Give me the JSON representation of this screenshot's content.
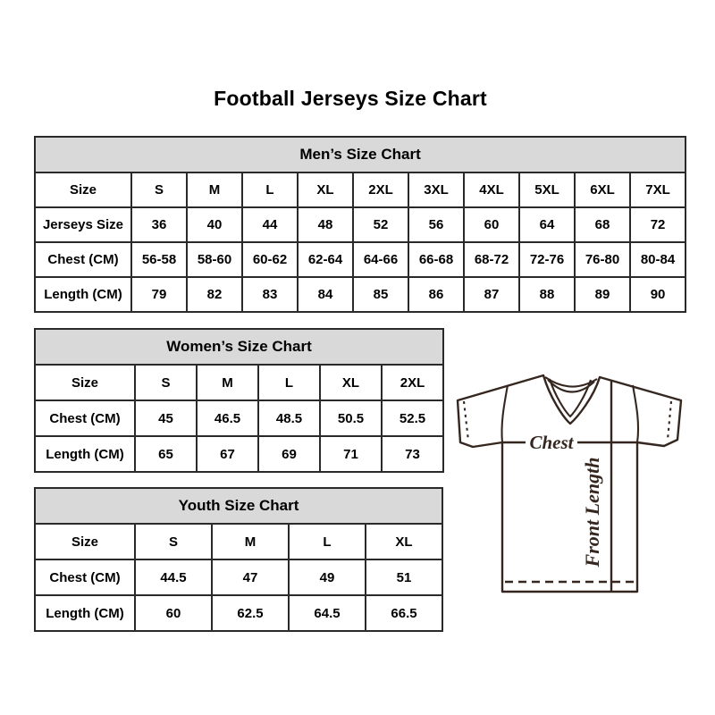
{
  "title": "Football Jerseys Size Chart",
  "tables": {
    "men": {
      "title": "Men’s Size Chart",
      "rows": [
        {
          "label": "Size",
          "values": [
            "S",
            "M",
            "L",
            "XL",
            "2XL",
            "3XL",
            "4XL",
            "5XL",
            "6XL",
            "7XL"
          ]
        },
        {
          "label": "Jerseys Size",
          "values": [
            "36",
            "40",
            "44",
            "48",
            "52",
            "56",
            "60",
            "64",
            "68",
            "72"
          ]
        },
        {
          "label": "Chest (CM)",
          "values": [
            "56-58",
            "58-60",
            "60-62",
            "62-64",
            "64-66",
            "66-68",
            "68-72",
            "72-76",
            "76-80",
            "80-84"
          ]
        },
        {
          "label": "Length (CM)",
          "values": [
            "79",
            "82",
            "83",
            "84",
            "85",
            "86",
            "87",
            "88",
            "89",
            "90"
          ]
        }
      ]
    },
    "women": {
      "title": "Women’s Size Chart",
      "rows": [
        {
          "label": "Size",
          "values": [
            "S",
            "M",
            "L",
            "XL",
            "2XL"
          ]
        },
        {
          "label": "Chest (CM)",
          "values": [
            "45",
            "46.5",
            "48.5",
            "50.5",
            "52.5"
          ]
        },
        {
          "label": "Length (CM)",
          "values": [
            "65",
            "67",
            "69",
            "71",
            "73"
          ]
        }
      ]
    },
    "youth": {
      "title": "Youth Size Chart",
      "rows": [
        {
          "label": "Size",
          "values": [
            "S",
            "M",
            "L",
            "XL"
          ]
        },
        {
          "label": "Chest (CM)",
          "values": [
            "44.5",
            "47",
            "49",
            "51"
          ]
        },
        {
          "label": "Length (CM)",
          "values": [
            "60",
            "62.5",
            "64.5",
            "66.5"
          ]
        }
      ]
    }
  },
  "diagram": {
    "chest_label": "Chest",
    "front_length_label": "Front Length"
  },
  "colors": {
    "header_bg": "#d9d9d9",
    "table_border": "#2a2a2a",
    "jersey_line": "#35271f",
    "text": "#000000"
  }
}
